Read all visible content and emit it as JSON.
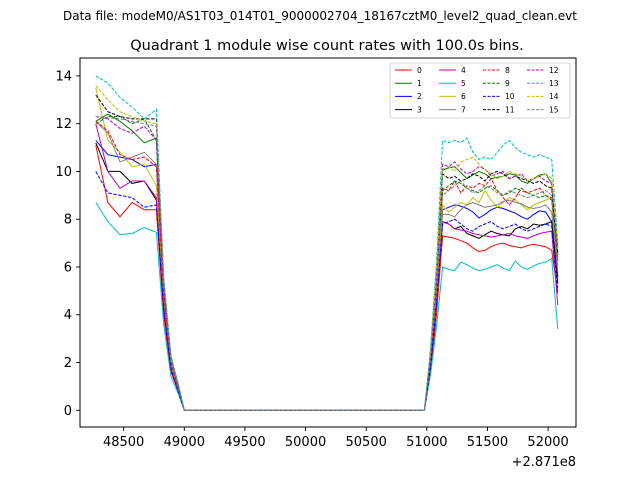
{
  "suptitle": "Data file: modeM0/AS1T03_014T01_9000002704_18167cztM0_level2_quad_clean.evt",
  "chart_data": {
    "type": "line",
    "title": "Quadrant 1 module wise count rates with 100.0s bins.",
    "xlabel": "",
    "ylabel": "",
    "offset_label": "+2.871e8",
    "xlim": [
      48140,
      52230
    ],
    "ylim": [
      -0.7,
      14.75
    ],
    "xticks": [
      48500,
      49000,
      49500,
      50000,
      50500,
      51000,
      51500,
      52000
    ],
    "yticks": [
      0,
      2,
      4,
      6,
      8,
      10,
      12,
      14
    ],
    "legend_position": "top-right",
    "x": [
      48270,
      48370,
      48470,
      48570,
      48670,
      48770,
      48830,
      48890,
      48950,
      49000,
      49500,
      50000,
      50500,
      50980,
      51030,
      51080,
      51130,
      51180,
      51230,
      51280,
      51330,
      51380,
      51430,
      51480,
      51530,
      51580,
      51630,
      51680,
      51730,
      51780,
      51830,
      51880,
      51930,
      51980,
      52030,
      52080
    ],
    "series": [
      {
        "name": "0",
        "color": "#ff0000",
        "dash": "solid",
        "values": [
          11.1,
          8.7,
          8.1,
          8.7,
          8.4,
          8.4,
          4.0,
          1.6,
          0.8,
          0.0,
          0.0,
          0.0,
          0.0,
          0.0,
          1.6,
          4.0,
          7.3,
          7.25,
          7.2,
          7.1,
          7.0,
          6.8,
          6.65,
          6.7,
          6.85,
          6.95,
          7.0,
          6.9,
          6.85,
          6.8,
          6.9,
          6.95,
          6.9,
          6.85,
          6.7,
          4.9
        ]
      },
      {
        "name": "1",
        "color": "#008000",
        "dash": "solid",
        "values": [
          12.1,
          12.4,
          12.1,
          11.7,
          11.2,
          11.4,
          5.3,
          2.2,
          1.1,
          0.0,
          0.0,
          0.0,
          0.0,
          0.0,
          2.4,
          5.9,
          10.05,
          10.15,
          10.2,
          9.95,
          9.7,
          9.85,
          10.0,
          9.9,
          9.7,
          9.75,
          9.8,
          9.9,
          9.85,
          9.6,
          9.5,
          9.7,
          9.85,
          9.9,
          9.5,
          6.5
        ]
      },
      {
        "name": "2",
        "color": "#0000ff",
        "dash": "solid",
        "values": [
          11.3,
          10.7,
          10.6,
          10.5,
          10.2,
          10.3,
          4.7,
          1.9,
          0.9,
          0.0,
          0.0,
          0.0,
          0.0,
          0.0,
          1.9,
          4.8,
          8.4,
          8.5,
          8.6,
          8.55,
          8.45,
          8.3,
          8.05,
          8.2,
          8.4,
          8.5,
          8.45,
          8.35,
          8.25,
          8.1,
          8.0,
          8.2,
          8.35,
          8.3,
          7.9,
          5.6
        ]
      },
      {
        "name": "3",
        "color": "#000000",
        "dash": "solid",
        "values": [
          11.2,
          10.0,
          10.0,
          9.5,
          9.6,
          8.8,
          4.4,
          1.8,
          0.8,
          0.0,
          0.0,
          0.0,
          0.0,
          0.0,
          1.8,
          4.6,
          7.9,
          7.8,
          7.6,
          7.7,
          7.4,
          7.3,
          7.2,
          7.35,
          7.5,
          7.4,
          7.35,
          7.3,
          7.6,
          7.7,
          7.6,
          7.8,
          7.75,
          7.8,
          7.9,
          5.3
        ]
      },
      {
        "name": "4",
        "color": "#bf00bf",
        "dash": "solid",
        "values": [
          12.0,
          10.0,
          9.3,
          9.6,
          9.6,
          8.9,
          4.5,
          1.8,
          0.8,
          0.0,
          0.0,
          0.0,
          0.0,
          0.0,
          1.8,
          4.6,
          7.9,
          7.8,
          7.6,
          7.55,
          7.5,
          7.4,
          7.35,
          7.3,
          7.25,
          7.3,
          7.35,
          7.4,
          7.3,
          7.25,
          7.2,
          7.3,
          7.4,
          7.45,
          7.5,
          4.4
        ]
      },
      {
        "name": "5",
        "color": "#00bfbf",
        "dash": "solid",
        "values": [
          8.7,
          7.9,
          7.35,
          7.4,
          7.65,
          7.45,
          3.6,
          1.4,
          0.7,
          0.0,
          0.0,
          0.0,
          0.0,
          0.0,
          1.5,
          3.5,
          6.0,
          5.9,
          5.85,
          6.2,
          6.1,
          5.95,
          5.85,
          5.9,
          6.0,
          6.1,
          5.95,
          5.85,
          6.25,
          6.0,
          5.9,
          6.05,
          6.15,
          6.2,
          6.35,
          3.4
        ]
      },
      {
        "name": "6",
        "color": "#bfbf00",
        "dash": "solid",
        "values": [
          13.5,
          11.3,
          10.8,
          10.2,
          10.3,
          9.4,
          4.8,
          1.9,
          0.9,
          0.0,
          0.0,
          0.0,
          0.0,
          0.0,
          2.0,
          5.0,
          8.6,
          8.3,
          8.5,
          8.7,
          8.6,
          8.9,
          8.7,
          9.2,
          8.8,
          8.5,
          8.7,
          8.9,
          8.8,
          8.6,
          8.4,
          8.6,
          8.7,
          8.8,
          8.9,
          6.0
        ]
      },
      {
        "name": "7",
        "color": "#808080",
        "dash": "solid",
        "values": [
          12.1,
          11.6,
          10.4,
          10.6,
          10.8,
          10.3,
          4.8,
          1.9,
          0.9,
          0.0,
          0.0,
          0.0,
          0.0,
          0.0,
          2.0,
          4.9,
          8.2,
          8.2,
          8.1,
          8.4,
          8.6,
          8.7,
          8.6,
          8.5,
          8.55,
          8.6,
          8.75,
          8.8,
          8.7,
          8.65,
          8.5,
          8.45,
          8.5,
          8.6,
          8.3,
          5.8
        ]
      },
      {
        "name": "8",
        "color": "#ff0000",
        "dash": "dashed",
        "values": [
          12.1,
          11.7,
          10.7,
          10.5,
          10.6,
          10.2,
          4.9,
          2.0,
          0.9,
          0.0,
          0.0,
          0.0,
          0.0,
          0.0,
          2.1,
          5.3,
          9.3,
          9.2,
          9.6,
          9.1,
          9.4,
          9.3,
          9.5,
          9.4,
          9.7,
          9.2,
          8.9,
          8.6,
          8.9,
          9.3,
          9.1,
          9.2,
          9.3,
          9.0,
          8.9,
          6.4
        ]
      },
      {
        "name": "9",
        "color": "#008000",
        "dash": "dashed",
        "values": [
          12.0,
          12.3,
          12.3,
          12.0,
          12.2,
          11.3,
          5.3,
          2.1,
          1.0,
          0.0,
          0.0,
          0.0,
          0.0,
          0.0,
          2.2,
          5.5,
          9.2,
          9.4,
          9.6,
          9.5,
          9.3,
          9.2,
          9.1,
          9.3,
          9.4,
          9.2,
          9.0,
          9.1,
          9.3,
          9.2,
          9.1,
          9.0,
          8.9,
          9.0,
          8.8,
          6.2
        ]
      },
      {
        "name": "10",
        "color": "#0000ff",
        "dash": "dashed",
        "values": [
          10.0,
          9.1,
          9.0,
          8.9,
          8.5,
          8.6,
          4.2,
          1.7,
          0.8,
          0.0,
          0.0,
          0.0,
          0.0,
          0.0,
          1.8,
          4.5,
          7.8,
          7.9,
          8.0,
          7.8,
          7.6,
          7.5,
          7.7,
          7.8,
          7.9,
          7.7,
          7.6,
          7.7,
          7.8,
          7.6,
          7.5,
          7.6,
          7.7,
          7.8,
          7.7,
          5.0
        ]
      },
      {
        "name": "11",
        "color": "#000000",
        "dash": "dashed",
        "values": [
          13.2,
          12.5,
          12.3,
          12.2,
          12.2,
          12.2,
          5.5,
          2.2,
          1.0,
          0.0,
          0.0,
          0.0,
          0.0,
          0.0,
          2.3,
          5.8,
          9.9,
          9.7,
          9.8,
          9.6,
          9.7,
          9.9,
          9.8,
          9.6,
          9.9,
          10.0,
          9.9,
          9.7,
          9.8,
          9.7,
          9.6,
          9.5,
          9.6,
          9.4,
          9.3,
          6.6
        ]
      },
      {
        "name": "12",
        "color": "#bf00bf",
        "dash": "dashed",
        "values": [
          12.3,
          12.2,
          11.8,
          11.6,
          11.9,
          11.3,
          5.2,
          2.1,
          1.0,
          0.0,
          0.0,
          0.0,
          0.0,
          0.0,
          2.3,
          5.7,
          10.3,
          10.2,
          10.4,
          10.1,
          9.9,
          10.0,
          10.2,
          10.1,
          9.8,
          9.9,
          10.0,
          9.7,
          9.8,
          9.9,
          9.6,
          9.7,
          9.8,
          9.6,
          9.5,
          6.9
        ]
      },
      {
        "name": "13",
        "color": "#00bfbf",
        "dash": "dashed",
        "values": [
          14.0,
          13.7,
          13.1,
          12.7,
          12.2,
          12.6,
          5.6,
          2.3,
          1.1,
          0.0,
          0.0,
          0.0,
          0.0,
          0.0,
          2.6,
          6.2,
          11.3,
          11.2,
          11.3,
          11.2,
          11.4,
          10.8,
          10.5,
          10.6,
          10.5,
          10.8,
          11.1,
          11.3,
          11.0,
          10.8,
          10.7,
          10.6,
          10.7,
          10.6,
          10.5,
          7.0
        ]
      },
      {
        "name": "14",
        "color": "#bfbf00",
        "dash": "dashed",
        "values": [
          13.6,
          13.0,
          12.5,
          12.3,
          12.1,
          12.0,
          5.4,
          2.2,
          1.0,
          0.0,
          0.0,
          0.0,
          0.0,
          0.0,
          2.4,
          5.9,
          10.1,
          10.2,
          10.0,
          10.4,
          10.5,
          10.6,
          10.3,
          10.1,
          9.9,
          9.7,
          9.8,
          10.0,
          9.9,
          9.8,
          9.6,
          9.7,
          9.8,
          9.9,
          9.7,
          6.8
        ]
      },
      {
        "name": "15",
        "color": "#808080",
        "dash": "dashed",
        "values": [
          12.3,
          12.25,
          12.2,
          12.1,
          12.0,
          11.9,
          5.3,
          2.1,
          1.0,
          0.0,
          0.0,
          0.0,
          0.0,
          0.0,
          2.2,
          5.4,
          9.0,
          9.2,
          9.4,
          9.6,
          9.3,
          9.1,
          9.2,
          9.4,
          9.3,
          9.1,
          9.0,
          9.2,
          9.1,
          9.0,
          8.9,
          9.0,
          9.1,
          9.2,
          9.0,
          6.3
        ]
      }
    ]
  }
}
